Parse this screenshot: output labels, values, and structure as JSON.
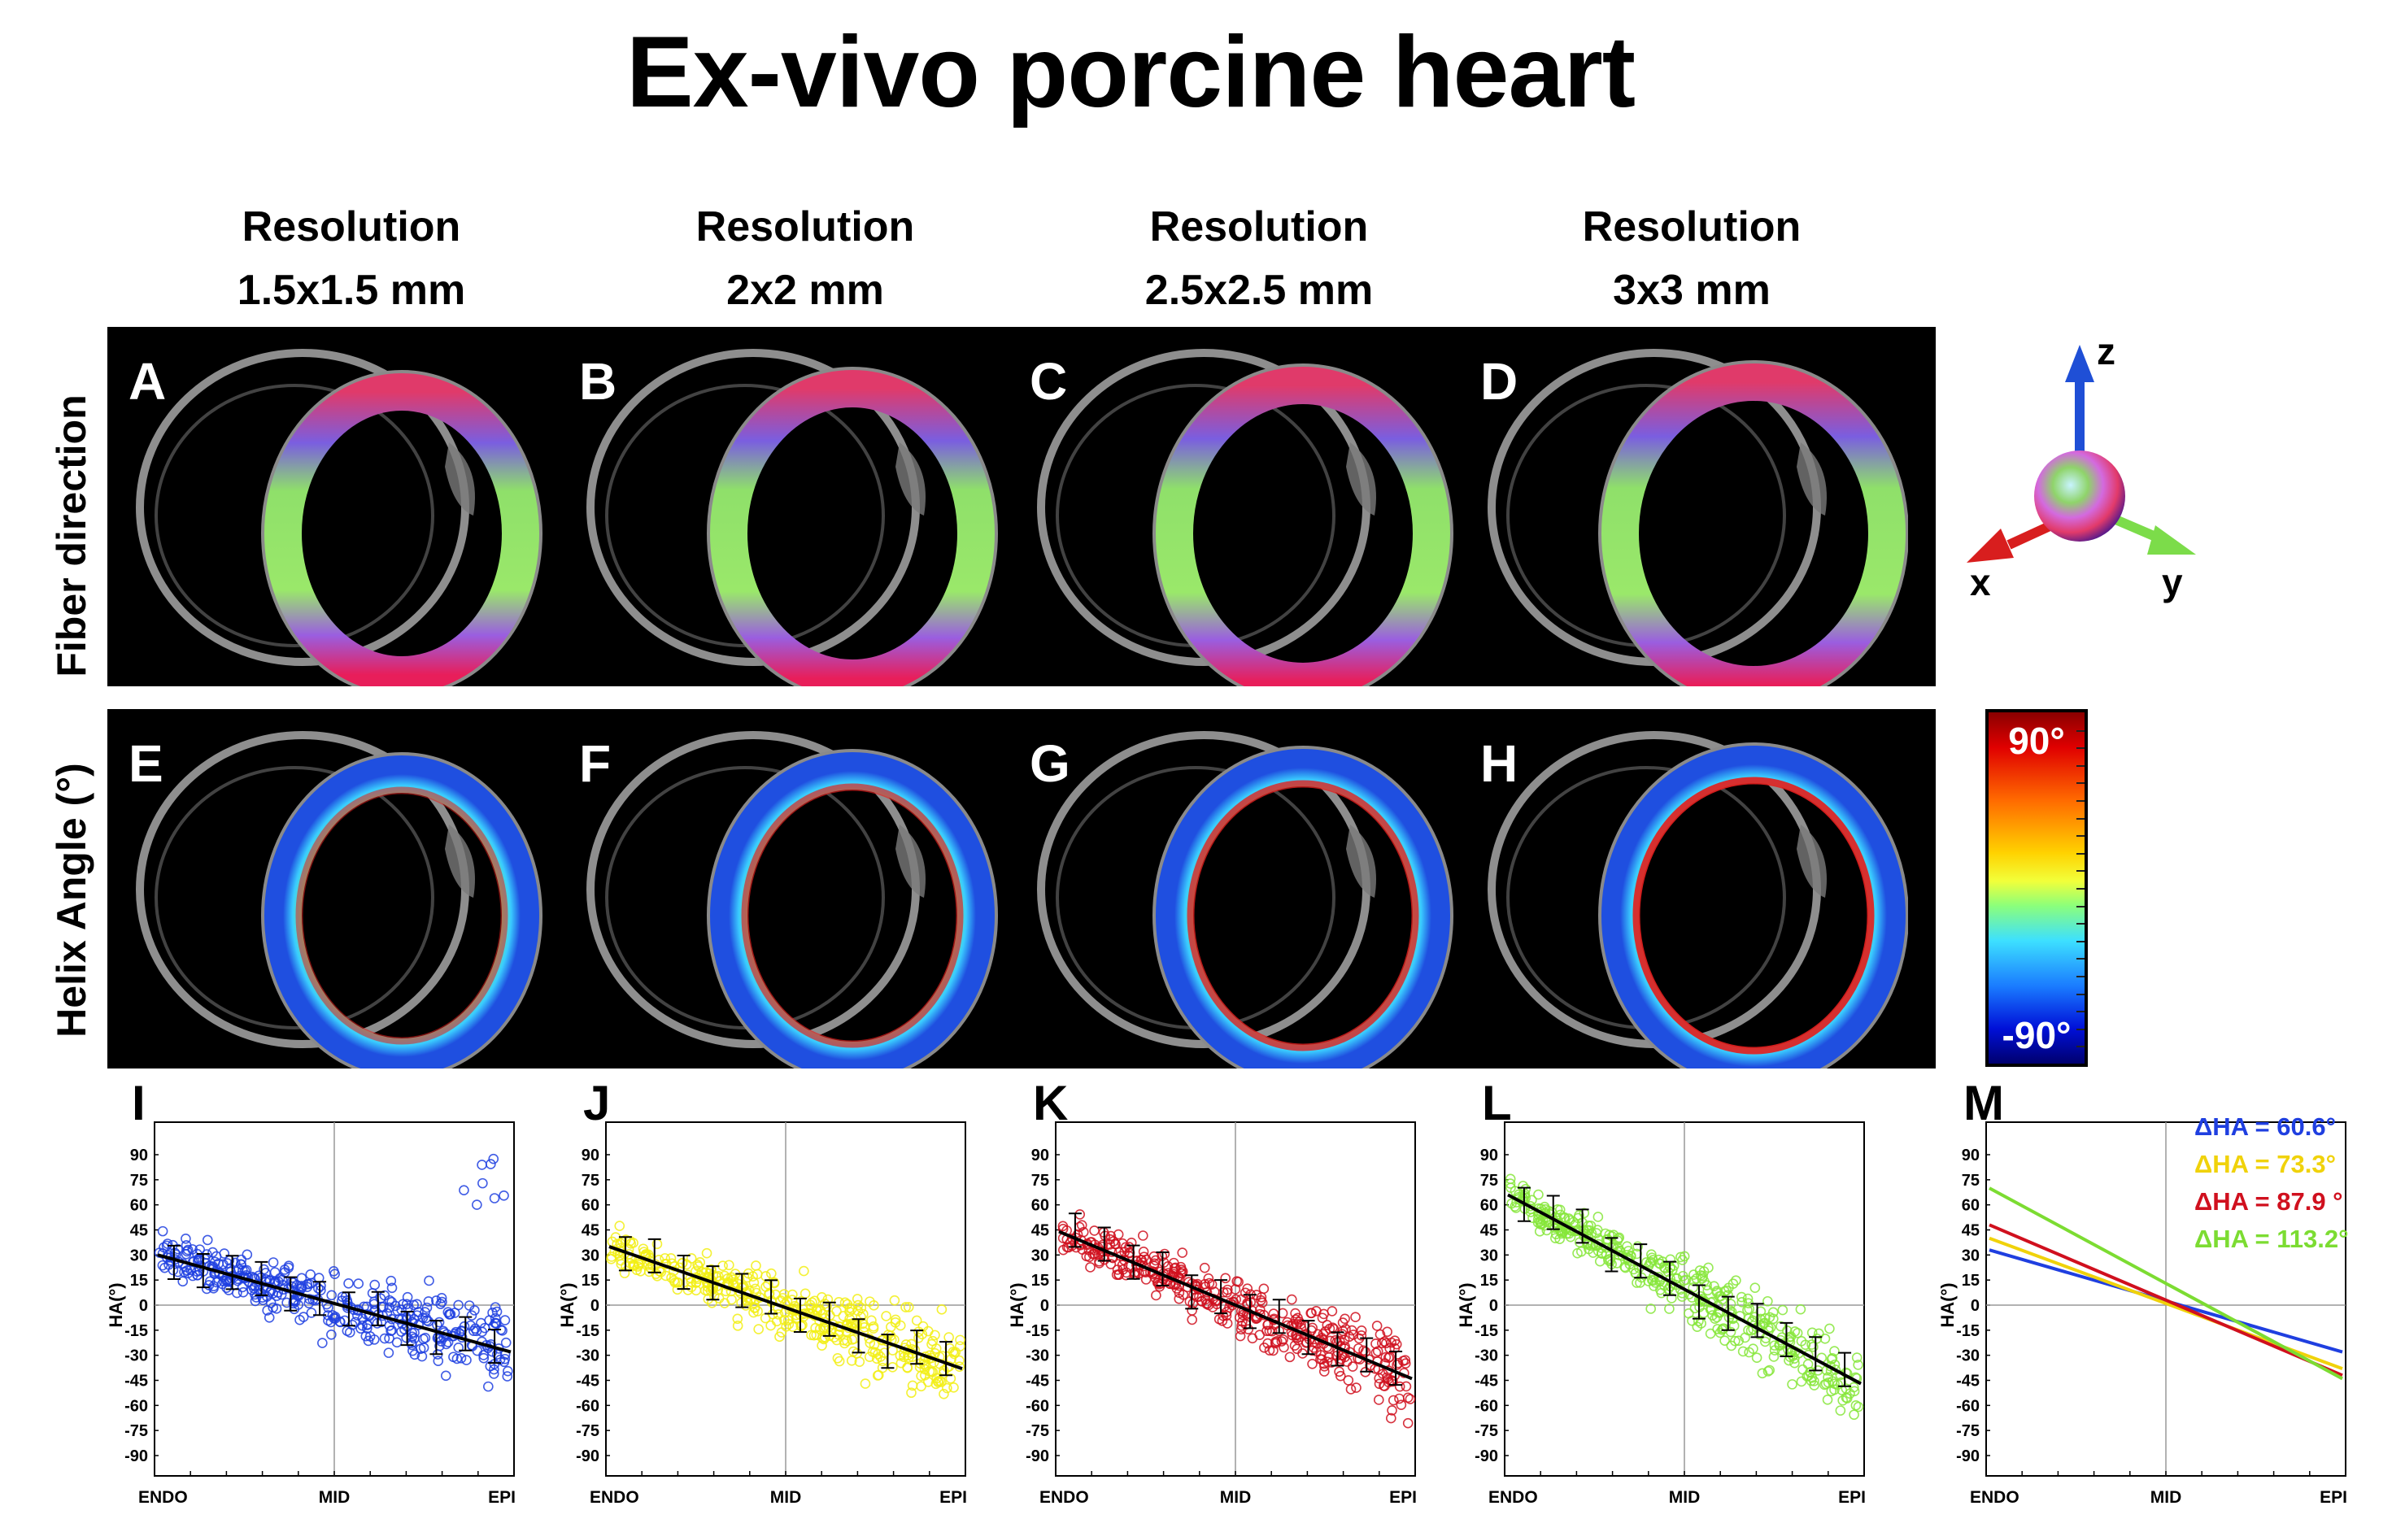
{
  "title": "Ex-vivo porcine heart",
  "columns": [
    {
      "line1": "Resolution",
      "line2": "1.5x1.5 mm"
    },
    {
      "line1": "Resolution",
      "line2": "2x2 mm"
    },
    {
      "line1": "Resolution",
      "line2": "2.5x2.5 mm"
    },
    {
      "line1": "Resolution",
      "line2": "3x3 mm"
    }
  ],
  "rows": {
    "fiber": "Fiber direction",
    "helix": "Helix Angle (°)"
  },
  "fiber_panels": [
    "A",
    "B",
    "C",
    "D"
  ],
  "helix_panels": [
    "E",
    "F",
    "G",
    "H"
  ],
  "axes_legend": {
    "z": "z",
    "x": "x",
    "y": "y",
    "colors": {
      "x": "#d81e1e",
      "y": "#7cdc4a",
      "z": "#1f4fd6"
    }
  },
  "colorbar": {
    "max": "90°",
    "min": "-90°"
  },
  "plots": {
    "yticks": [
      "90",
      "75",
      "60",
      "45",
      "30",
      "15",
      "0",
      "-15",
      "-30",
      "-45",
      "-60",
      "-75",
      "-90"
    ],
    "ylabel": "HA(°)",
    "xlabels": [
      "ENDO",
      "MID",
      "EPI"
    ],
    "panels": [
      {
        "label": "I",
        "color": "#1f3fe0",
        "fit": [
          30,
          -28
        ]
      },
      {
        "label": "J",
        "color": "#f2ee14",
        "fit": [
          35,
          -38
        ]
      },
      {
        "label": "K",
        "color": "#d0101e",
        "fit": [
          44,
          -44
        ]
      },
      {
        "label": "L",
        "color": "#86e63a",
        "fit": [
          66,
          -47
        ]
      }
    ],
    "summary": {
      "label": "M",
      "lines": [
        {
          "text": "ΔHA = 60.6°",
          "color": "#1f3fe0",
          "fit": [
            33,
            -28
          ]
        },
        {
          "text": "ΔHA =  73.3°",
          "color": "#f0d20a",
          "fit": [
            40,
            -38
          ]
        },
        {
          "text": "ΔHA = 87.9 °",
          "color": "#d0101e",
          "fit": [
            48,
            -42
          ]
        },
        {
          "text": "ΔHA = 113.2°",
          "color": "#7cdc32",
          "fit": [
            70,
            -44
          ]
        }
      ]
    }
  }
}
